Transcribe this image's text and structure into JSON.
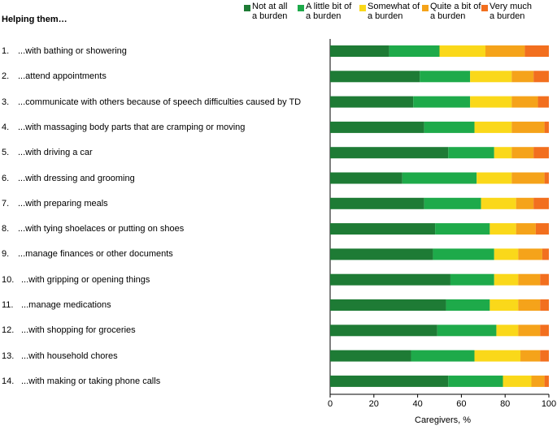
{
  "chart_data": {
    "type": "bar",
    "orientation": "horizontal",
    "stacked": true,
    "heading": "Helping them…",
    "xlabel": "Caregivers, %",
    "xlim": [
      0,
      100
    ],
    "xticks": [
      "0",
      "20",
      "40",
      "60",
      "80",
      "100"
    ],
    "series": [
      {
        "name": "Not at all a burden",
        "label_line1": "Not at all",
        "label_line2": "a burden",
        "color": "#1e7b35"
      },
      {
        "name": "A little bit of a burden",
        "label_line1": "A little bit of",
        "label_line2": "a burden",
        "color": "#1eaa4a"
      },
      {
        "name": "Somewhat of a burden",
        "label_line1": "Somewhat of",
        "label_line2": "a burden",
        "color": "#fad81a"
      },
      {
        "name": "Quite a bit of a burden",
        "label_line1": "Quite a bit of",
        "label_line2": "a burden",
        "color": "#f5a31a"
      },
      {
        "name": "Very much a burden",
        "label_line1": "Very much",
        "label_line2": "a burden",
        "color": "#f26f1f"
      }
    ],
    "categories": [
      {
        "num": "1.",
        "label": "...with bathing or showering",
        "values": [
          27,
          23,
          21,
          18,
          11
        ]
      },
      {
        "num": "2.",
        "label": "...attend appointments",
        "values": [
          41,
          23,
          19,
          10,
          7
        ]
      },
      {
        "num": "3.",
        "label": "...communicate with others because of speech difficulties caused by TD",
        "values": [
          38,
          26,
          19,
          12,
          5
        ]
      },
      {
        "num": "4.",
        "label": "...with massaging body parts that are cramping or moving",
        "values": [
          43,
          23,
          17,
          15,
          2
        ]
      },
      {
        "num": "5.",
        "label": "...with driving a car",
        "values": [
          54,
          21,
          8,
          10,
          7
        ]
      },
      {
        "num": "6.",
        "label": "...with dressing and grooming",
        "values": [
          33,
          34,
          16,
          15,
          2
        ]
      },
      {
        "num": "7.",
        "label": "...with preparing meals",
        "values": [
          43,
          26,
          16,
          8,
          7
        ]
      },
      {
        "num": "8.",
        "label": "...with tying shoelaces or putting on shoes",
        "values": [
          48,
          25,
          12,
          9,
          6
        ]
      },
      {
        "num": "9.",
        "label": "...manage finances or other documents",
        "values": [
          47,
          28,
          11,
          11,
          3
        ]
      },
      {
        "num": "10.",
        "label": "...with gripping or opening things",
        "values": [
          55,
          20,
          11,
          10,
          4
        ]
      },
      {
        "num": "11.",
        "label": "...manage medications",
        "values": [
          53,
          20,
          13,
          10,
          4
        ]
      },
      {
        "num": "12.",
        "label": "...with shopping for groceries",
        "values": [
          49,
          27,
          10,
          10,
          4
        ]
      },
      {
        "num": "13.",
        "label": "...with household chores",
        "values": [
          37,
          29,
          21,
          9,
          4
        ]
      },
      {
        "num": "14.",
        "label": "...with making or taking phone calls",
        "values": [
          54,
          25,
          13,
          6,
          2
        ]
      }
    ]
  }
}
